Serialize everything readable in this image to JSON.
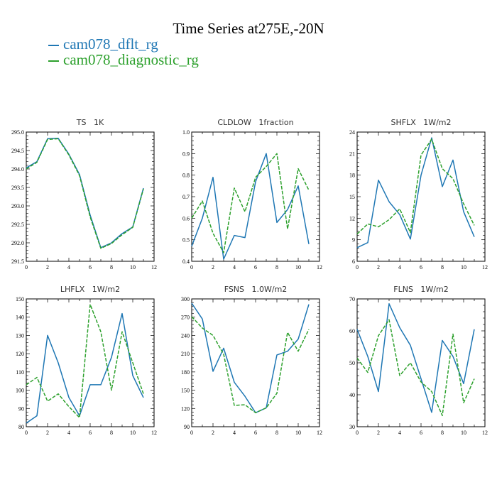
{
  "title": "Time Series at275E,-20N",
  "legend": [
    {
      "name": "cam078_dflt_rg",
      "color": "#1f77b4",
      "dash": false
    },
    {
      "name": "cam078_diagnostic_rg",
      "color": "#2ca02c",
      "dash": true
    }
  ],
  "chart_data": [
    {
      "type": "line",
      "title": "TS   1K",
      "x": [
        0,
        1,
        2,
        3,
        4,
        5,
        6,
        7,
        8,
        9,
        10,
        11
      ],
      "xlim": [
        0,
        12
      ],
      "xticks": [
        0,
        2,
        4,
        6,
        8,
        10,
        12
      ],
      "ylim": [
        291.5,
        295.0
      ],
      "yticks": [
        "291.5",
        "292.0",
        "292.5",
        "293.0",
        "293.5",
        "294.0",
        "294.5",
        "295.0"
      ],
      "series": [
        {
          "name": "cam078_dflt_rg",
          "values": [
            294.03,
            294.2,
            294.82,
            294.83,
            294.4,
            293.85,
            292.75,
            291.87,
            292.0,
            292.25,
            292.43,
            293.48
          ]
        },
        {
          "name": "cam078_diagnostic_rg",
          "values": [
            294.0,
            294.18,
            294.8,
            294.82,
            294.38,
            293.82,
            292.7,
            291.85,
            291.98,
            292.22,
            292.42,
            293.46
          ]
        }
      ]
    },
    {
      "type": "line",
      "title": "CLDLOW   1fraction",
      "x": [
        0,
        1,
        2,
        3,
        4,
        5,
        6,
        7,
        8,
        9,
        10,
        11
      ],
      "xlim": [
        0,
        12
      ],
      "xticks": [
        0,
        2,
        4,
        6,
        8,
        10,
        12
      ],
      "ylim": [
        0.4,
        1.0
      ],
      "yticks": [
        "0.4",
        "0.5",
        "0.6",
        "0.7",
        "0.8",
        "0.9",
        "1.0"
      ],
      "series": [
        {
          "name": "cam078_dflt_rg",
          "values": [
            0.47,
            0.6,
            0.79,
            0.41,
            0.52,
            0.51,
            0.77,
            0.9,
            0.58,
            0.64,
            0.75,
            0.48
          ]
        },
        {
          "name": "cam078_diagnostic_rg",
          "values": [
            0.6,
            0.68,
            0.53,
            0.44,
            0.74,
            0.63,
            0.79,
            0.84,
            0.9,
            0.55,
            0.83,
            0.73
          ]
        }
      ]
    },
    {
      "type": "line",
      "title": "SHFLX   1W/m2",
      "x": [
        0,
        1,
        2,
        3,
        4,
        5,
        6,
        7,
        8,
        9,
        10,
        11
      ],
      "xlim": [
        0,
        12
      ],
      "xticks": [
        0,
        2,
        4,
        6,
        8,
        10,
        12
      ],
      "ylim": [
        6,
        24
      ],
      "yticks": [
        "6",
        "9",
        "12",
        "15",
        "18",
        "21",
        "24"
      ],
      "series": [
        {
          "name": "cam078_dflt_rg",
          "values": [
            7.9,
            8.6,
            17.3,
            14.3,
            12.5,
            9.1,
            18.0,
            23.2,
            16.4,
            20.1,
            12.9,
            9.4
          ]
        },
        {
          "name": "cam078_diagnostic_rg",
          "values": [
            9.8,
            11.2,
            10.8,
            11.8,
            13.3,
            10.0,
            20.8,
            23.0,
            18.9,
            17.5,
            14.0,
            11.0
          ]
        }
      ]
    },
    {
      "type": "line",
      "title": "LHFLX   1W/m2",
      "x": [
        0,
        1,
        2,
        3,
        4,
        5,
        6,
        7,
        8,
        9,
        10,
        11
      ],
      "xlim": [
        0,
        12
      ],
      "xticks": [
        0,
        2,
        4,
        6,
        8,
        10,
        12
      ],
      "ylim": [
        80,
        150
      ],
      "yticks": [
        "80",
        "90",
        "100",
        "110",
        "120",
        "130",
        "140",
        "150"
      ],
      "series": [
        {
          "name": "cam078_dflt_rg",
          "values": [
            82,
            86,
            130,
            115,
            96,
            86,
            103,
            103,
            118,
            142,
            108,
            96
          ]
        },
        {
          "name": "cam078_diagnostic_rg",
          "values": [
            103,
            107,
            94,
            98,
            91,
            85,
            147,
            132,
            100,
            132,
            115,
            98
          ]
        }
      ]
    },
    {
      "type": "line",
      "title": "FSNS   1.0W/m2",
      "x": [
        0,
        1,
        2,
        3,
        4,
        5,
        6,
        7,
        8,
        9,
        10,
        11
      ],
      "xlim": [
        0,
        12
      ],
      "xticks": [
        0,
        2,
        4,
        6,
        8,
        10,
        12
      ],
      "ylim": [
        90,
        300
      ],
      "yticks": [
        "90",
        "120",
        "150",
        "180",
        "210",
        "240",
        "270",
        "300"
      ],
      "series": [
        {
          "name": "cam078_dflt_rg",
          "values": [
            293,
            267,
            181,
            219,
            163,
            140,
            113,
            121,
            208,
            214,
            234,
            291
          ]
        },
        {
          "name": "cam078_diagnostic_rg",
          "values": [
            271,
            252,
            240,
            209,
            125,
            126,
            113,
            121,
            145,
            245,
            214,
            250
          ]
        }
      ]
    },
    {
      "type": "line",
      "title": "FLNS   1W/m2",
      "x": [
        0,
        1,
        2,
        3,
        4,
        5,
        6,
        7,
        8,
        9,
        10,
        11
      ],
      "xlim": [
        0,
        12
      ],
      "xticks": [
        0,
        2,
        4,
        6,
        8,
        10,
        12
      ],
      "ylim": [
        30,
        70
      ],
      "yticks": [
        "30",
        "40",
        "50",
        "60",
        "70"
      ],
      "series": [
        {
          "name": "cam078_dflt_rg",
          "values": [
            60.5,
            52,
            41,
            68.5,
            61,
            55.5,
            45,
            34.5,
            57,
            52,
            43.5,
            60.5
          ]
        },
        {
          "name": "cam078_diagnostic_rg",
          "values": [
            51.5,
            47,
            58.5,
            63.5,
            46,
            50,
            44,
            41,
            33.5,
            59,
            37.5,
            45
          ]
        }
      ]
    }
  ]
}
